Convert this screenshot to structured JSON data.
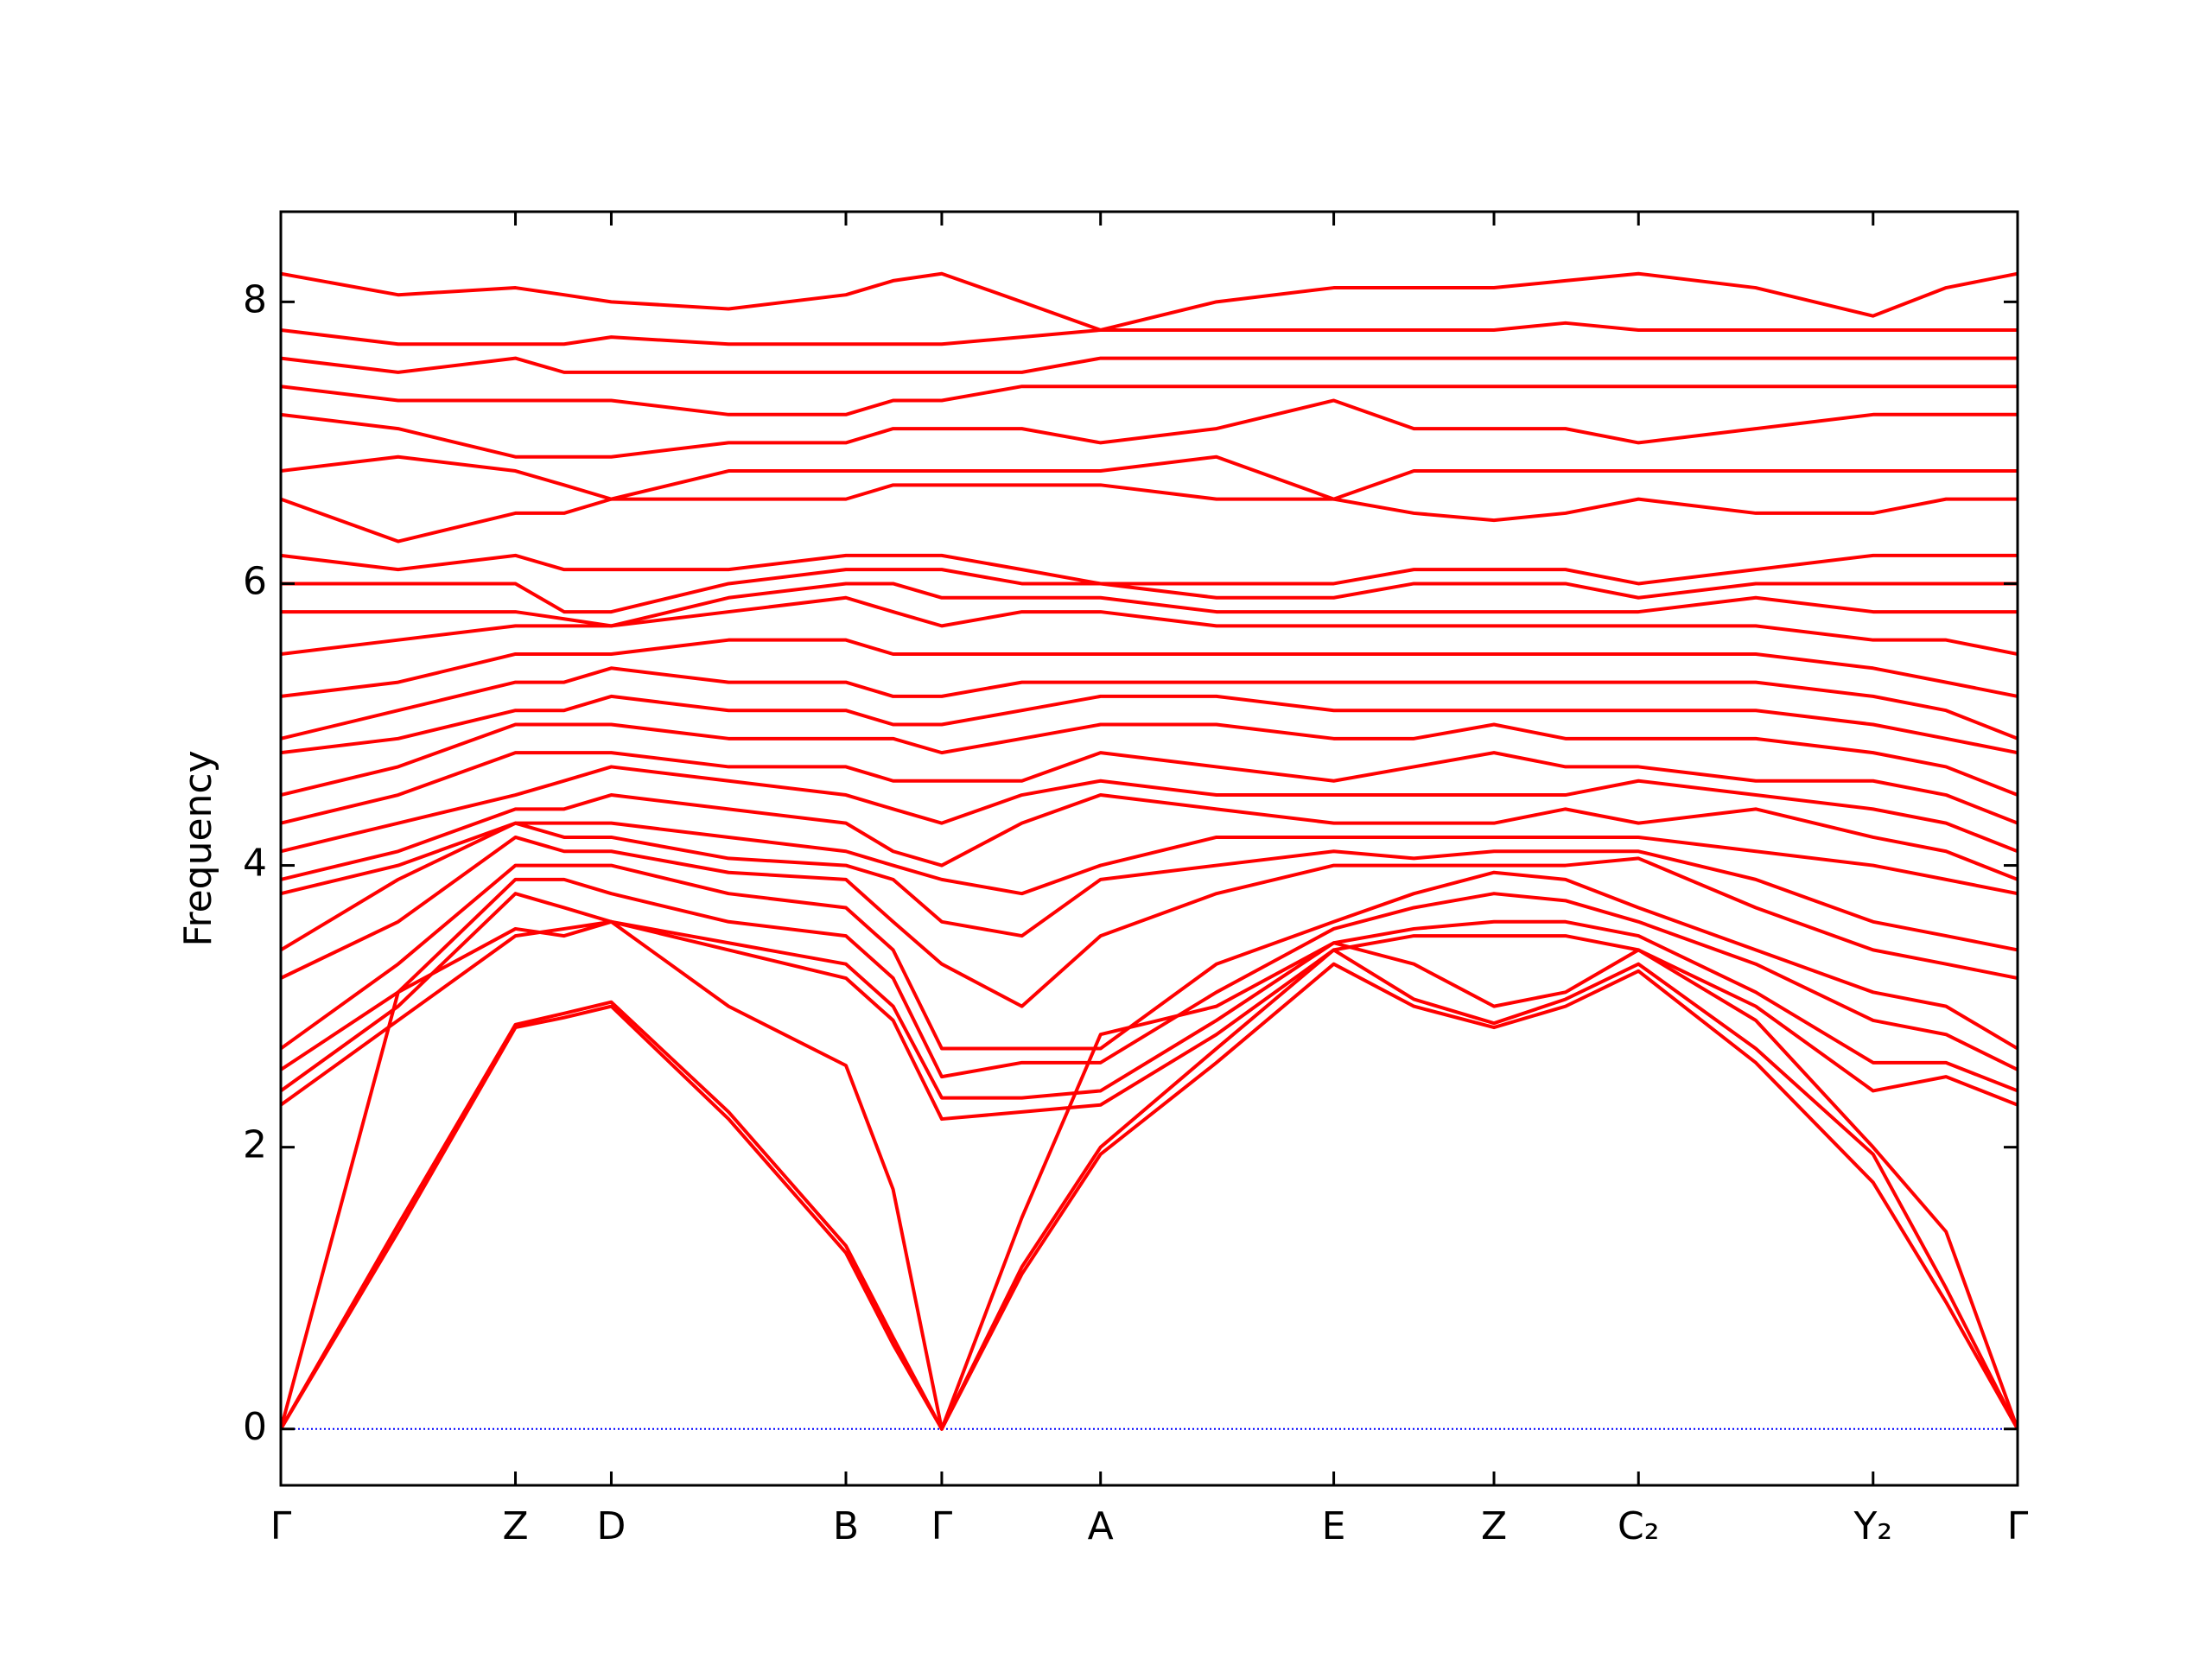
{
  "chart_data": {
    "type": "line",
    "ylabel": "Frequency",
    "color": "#ff0000",
    "hline": 0,
    "hline_color": "#0000ff",
    "x": [
      0,
      82,
      164,
      198,
      231,
      313,
      395,
      428,
      462,
      518,
      573,
      654,
      736,
      792,
      848,
      898,
      949,
      1031,
      1113,
      1164,
      1214
    ],
    "xlim": [
      0,
      1214
    ],
    "xticks": [
      {
        "value": 0,
        "label": "Γ"
      },
      {
        "value": 164,
        "label": "Z"
      },
      {
        "value": 231,
        "label": "D"
      },
      {
        "value": 395,
        "label": "B"
      },
      {
        "value": 462,
        "label": "Γ"
      },
      {
        "value": 573,
        "label": "A"
      },
      {
        "value": 736,
        "label": "E"
      },
      {
        "value": 848,
        "label": "Z"
      },
      {
        "value": 949,
        "label": "C₂"
      },
      {
        "value": 1113,
        "label": "Y₂"
      },
      {
        "value": 1214,
        "label": "Γ"
      }
    ],
    "ylim": [
      -0.4,
      8.64
    ],
    "yticks": [
      0,
      2,
      4,
      6,
      8
    ],
    "series": [
      {
        "values": [
          0,
          1.4,
          2.85,
          2.92,
          3.0,
          2.2,
          1.25,
          0.6,
          0,
          1.1,
          1.95,
          2.6,
          3.3,
          3.0,
          2.85,
          3.0,
          3.25,
          2.6,
          1.75,
          0.9,
          0
        ]
      },
      {
        "values": [
          0,
          1.45,
          2.87,
          2.95,
          3.03,
          2.25,
          1.3,
          0.65,
          0,
          1.15,
          2.0,
          2.7,
          3.4,
          3.05,
          2.88,
          3.05,
          3.3,
          2.7,
          1.95,
          1.0,
          0
        ]
      },
      {
        "values": [
          0,
          3.1,
          3.55,
          3.5,
          3.6,
          3.0,
          2.58,
          1.7,
          0,
          1.5,
          2.8,
          3.0,
          3.45,
          3.3,
          3.0,
          3.1,
          3.4,
          2.9,
          2.0,
          1.4,
          0
        ]
      },
      {
        "values": [
          2.3,
          2.9,
          3.5,
          3.55,
          3.6,
          3.4,
          3.2,
          2.9,
          2.2,
          2.25,
          2.3,
          2.8,
          3.4,
          3.5,
          3.5,
          3.5,
          3.4,
          3.0,
          2.4,
          2.5,
          2.3
        ]
      },
      {
        "values": [
          2.4,
          3.0,
          3.8,
          3.7,
          3.6,
          3.45,
          3.3,
          3.0,
          2.35,
          2.35,
          2.4,
          2.9,
          3.45,
          3.55,
          3.6,
          3.6,
          3.5,
          3.1,
          2.6,
          2.6,
          2.4
        ]
      },
      {
        "values": [
          2.55,
          3.1,
          3.9,
          3.9,
          3.8,
          3.6,
          3.5,
          3.2,
          2.5,
          2.6,
          2.6,
          3.1,
          3.55,
          3.7,
          3.8,
          3.75,
          3.6,
          3.3,
          2.9,
          2.8,
          2.55
        ]
      },
      {
        "values": [
          2.7,
          3.3,
          4.0,
          4.0,
          4.0,
          3.8,
          3.7,
          3.4,
          2.7,
          2.7,
          2.7,
          3.3,
          3.6,
          3.8,
          3.95,
          3.9,
          3.7,
          3.4,
          3.1,
          3.0,
          2.7
        ]
      },
      {
        "values": [
          3.2,
          3.6,
          4.2,
          4.1,
          4.1,
          3.95,
          3.9,
          3.6,
          3.3,
          3.0,
          3.5,
          3.8,
          4.0,
          4.0,
          4.0,
          4.0,
          4.05,
          3.7,
          3.4,
          3.3,
          3.2
        ]
      },
      {
        "values": [
          3.4,
          3.9,
          4.3,
          4.2,
          4.2,
          4.05,
          4.0,
          3.9,
          3.6,
          3.5,
          3.9,
          4.0,
          4.1,
          4.05,
          4.1,
          4.1,
          4.1,
          3.9,
          3.6,
          3.5,
          3.4
        ]
      },
      {
        "values": [
          3.8,
          4.0,
          4.3,
          4.3,
          4.3,
          4.2,
          4.1,
          4.0,
          3.9,
          3.8,
          4.0,
          4.2,
          4.2,
          4.2,
          4.2,
          4.2,
          4.2,
          4.1,
          4.0,
          3.9,
          3.8
        ]
      },
      {
        "values": [
          3.9,
          4.1,
          4.4,
          4.4,
          4.5,
          4.4,
          4.3,
          4.1,
          4.0,
          4.3,
          4.5,
          4.4,
          4.3,
          4.3,
          4.3,
          4.4,
          4.3,
          4.4,
          4.2,
          4.1,
          3.9
        ]
      },
      {
        "values": [
          4.1,
          4.3,
          4.5,
          4.6,
          4.7,
          4.6,
          4.5,
          4.4,
          4.3,
          4.5,
          4.6,
          4.5,
          4.5,
          4.5,
          4.5,
          4.5,
          4.6,
          4.5,
          4.4,
          4.3,
          4.1
        ]
      },
      {
        "values": [
          4.3,
          4.5,
          4.8,
          4.8,
          4.8,
          4.7,
          4.7,
          4.6,
          4.6,
          4.6,
          4.8,
          4.7,
          4.6,
          4.7,
          4.8,
          4.7,
          4.7,
          4.6,
          4.6,
          4.5,
          4.3
        ]
      },
      {
        "values": [
          4.5,
          4.7,
          5.0,
          5.0,
          5.0,
          4.9,
          4.9,
          4.9,
          4.8,
          4.9,
          5.0,
          5.0,
          4.9,
          4.9,
          5.0,
          4.9,
          4.9,
          4.9,
          4.8,
          4.7,
          4.5
        ]
      },
      {
        "values": [
          4.8,
          4.9,
          5.1,
          5.1,
          5.2,
          5.1,
          5.1,
          5.0,
          5.0,
          5.1,
          5.2,
          5.2,
          5.1,
          5.1,
          5.1,
          5.1,
          5.1,
          5.1,
          5.0,
          4.9,
          4.8
        ]
      },
      {
        "values": [
          4.9,
          5.1,
          5.3,
          5.3,
          5.4,
          5.3,
          5.3,
          5.2,
          5.2,
          5.3,
          5.3,
          5.3,
          5.3,
          5.3,
          5.3,
          5.3,
          5.3,
          5.3,
          5.2,
          5.1,
          4.9
        ]
      },
      {
        "values": [
          5.2,
          5.3,
          5.5,
          5.5,
          5.5,
          5.6,
          5.6,
          5.5,
          5.5,
          5.5,
          5.5,
          5.5,
          5.5,
          5.5,
          5.5,
          5.5,
          5.5,
          5.5,
          5.4,
          5.3,
          5.2
        ]
      },
      {
        "values": [
          5.5,
          5.6,
          5.7,
          5.7,
          5.7,
          5.8,
          5.9,
          5.8,
          5.7,
          5.8,
          5.8,
          5.7,
          5.7,
          5.7,
          5.7,
          5.7,
          5.7,
          5.7,
          5.6,
          5.6,
          5.5
        ]
      },
      {
        "values": [
          5.8,
          5.8,
          5.8,
          5.75,
          5.7,
          5.9,
          6.0,
          6.0,
          5.9,
          5.9,
          5.9,
          5.8,
          5.8,
          5.8,
          5.8,
          5.8,
          5.8,
          5.9,
          5.8,
          5.8,
          5.8
        ]
      },
      {
        "values": [
          6.0,
          6.0,
          6.0,
          5.8,
          5.8,
          6.0,
          6.1,
          6.1,
          6.1,
          6.0,
          6.0,
          5.9,
          5.9,
          6.0,
          6.0,
          6.0,
          5.9,
          6.0,
          6.0,
          6.0,
          6.0
        ]
      },
      {
        "values": [
          6.2,
          6.1,
          6.2,
          6.1,
          6.1,
          6.1,
          6.2,
          6.2,
          6.2,
          6.1,
          6.0,
          6.0,
          6.0,
          6.1,
          6.1,
          6.1,
          6.0,
          6.1,
          6.2,
          6.2,
          6.2
        ]
      },
      {
        "values": [
          6.6,
          6.3,
          6.5,
          6.5,
          6.6,
          6.6,
          6.6,
          6.7,
          6.7,
          6.7,
          6.7,
          6.6,
          6.6,
          6.5,
          6.45,
          6.5,
          6.6,
          6.5,
          6.5,
          6.6,
          6.6
        ]
      },
      {
        "values": [
          6.8,
          6.9,
          6.8,
          6.7,
          6.6,
          6.8,
          6.8,
          6.8,
          6.8,
          6.8,
          6.8,
          6.9,
          6.6,
          6.8,
          6.8,
          6.8,
          6.8,
          6.8,
          6.8,
          6.8,
          6.8
        ]
      },
      {
        "values": [
          7.2,
          7.1,
          6.9,
          6.9,
          6.9,
          7.0,
          7.0,
          7.1,
          7.1,
          7.1,
          7.0,
          7.1,
          7.3,
          7.1,
          7.1,
          7.1,
          7.0,
          7.1,
          7.2,
          7.2,
          7.2
        ]
      },
      {
        "values": [
          7.4,
          7.3,
          7.3,
          7.3,
          7.3,
          7.2,
          7.2,
          7.3,
          7.3,
          7.4,
          7.4,
          7.4,
          7.4,
          7.4,
          7.4,
          7.4,
          7.4,
          7.4,
          7.4,
          7.4,
          7.4
        ]
      },
      {
        "values": [
          7.6,
          7.5,
          7.6,
          7.5,
          7.5,
          7.5,
          7.5,
          7.5,
          7.5,
          7.5,
          7.6,
          7.6,
          7.6,
          7.6,
          7.6,
          7.6,
          7.6,
          7.6,
          7.6,
          7.6,
          7.6
        ]
      },
      {
        "values": [
          7.8,
          7.7,
          7.7,
          7.7,
          7.75,
          7.7,
          7.7,
          7.7,
          7.7,
          7.75,
          7.8,
          7.8,
          7.8,
          7.8,
          7.8,
          7.85,
          7.8,
          7.8,
          7.8,
          7.8,
          7.8
        ]
      },
      {
        "values": [
          8.2,
          8.05,
          8.1,
          8.05,
          8.0,
          7.95,
          8.05,
          8.15,
          8.2,
          8.0,
          7.8,
          8.0,
          8.1,
          8.1,
          8.1,
          8.15,
          8.2,
          8.1,
          7.9,
          8.1,
          8.2
        ]
      }
    ]
  }
}
